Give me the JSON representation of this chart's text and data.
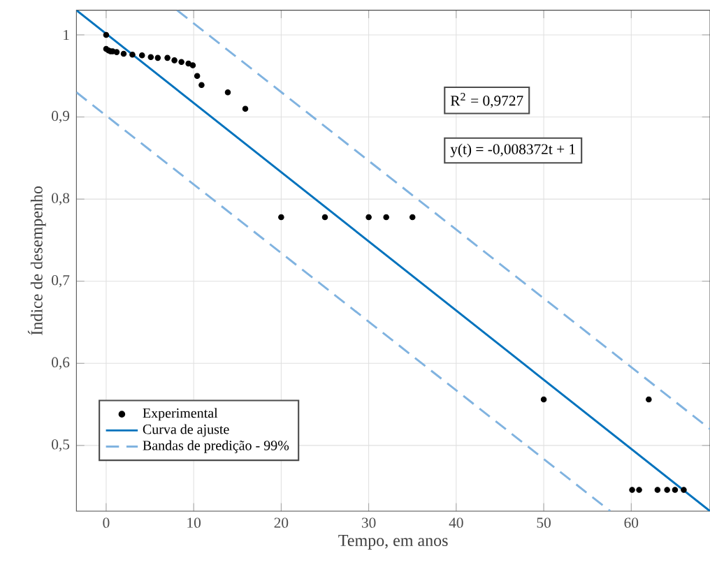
{
  "chart_data": {
    "type": "scatter",
    "xlabel": "Tempo, em anos",
    "ylabel": "Índice de desempenho",
    "xlim": [
      -3.4,
      69
    ],
    "ylim": [
      0.42,
      1.03
    ],
    "xticks": [
      0,
      10,
      20,
      30,
      40,
      50,
      60
    ],
    "yticks": [
      {
        "value": 0.5,
        "label": "0,5"
      },
      {
        "value": 0.6,
        "label": "0,6"
      },
      {
        "value": 0.7,
        "label": "0,7"
      },
      {
        "value": 0.8,
        "label": "0,8"
      },
      {
        "value": 0.9,
        "label": "0,9"
      },
      1
    ],
    "grid": true,
    "legend": "bottom left",
    "annotations": [
      "R$^{2}$ = 0,9727",
      "y(t) = -0,008372t + 1"
    ],
    "series": [
      {
        "name": "Experimental",
        "marker": "circle",
        "color": "#000000",
        "x": [
          0,
          0,
          0.27,
          0.5,
          0.75,
          1.2,
          2,
          3,
          4.1,
          5.1,
          5.9,
          7,
          7.8,
          8.6,
          9.4,
          9.9,
          10.4,
          10.9,
          13.9,
          15.9,
          20,
          25,
          30,
          32,
          35,
          50,
          62,
          60.1,
          60.9,
          63,
          64.1,
          65,
          66
        ],
        "values": [
          1.0,
          0.983,
          0.981,
          0.98,
          0.98,
          0.979,
          0.977,
          0.976,
          0.975,
          0.973,
          0.972,
          0.972,
          0.969,
          0.967,
          0.965,
          0.963,
          0.95,
          0.939,
          0.93,
          0.91,
          0.778,
          0.778,
          0.778,
          0.778,
          0.778,
          0.556,
          0.556,
          0.446,
          0.446,
          0.446,
          0.446,
          0.446,
          0.446
        ]
      },
      {
        "name": "Curva de ajuste",
        "type": "line",
        "marker": "none",
        "line_style": "solid",
        "color": "#0072bd",
        "x": [
          -3.4,
          69
        ],
        "values": [
          1.03,
          0.42
        ]
      },
      {
        "name": "Bandas de predição - 99%",
        "type": "line",
        "marker": "none",
        "line_style": "dashed",
        "color": "#80b3e0",
        "x": [
          8.1,
          69
        ],
        "values": [
          1.03,
          0.52
        ]
      },
      {
        "type": "line",
        "marker": "none",
        "line_style": "dashed",
        "color": "#80b3e0",
        "x": [
          -3.4,
          57.6
        ],
        "values": [
          0.93,
          0.42
        ]
      }
    ]
  }
}
